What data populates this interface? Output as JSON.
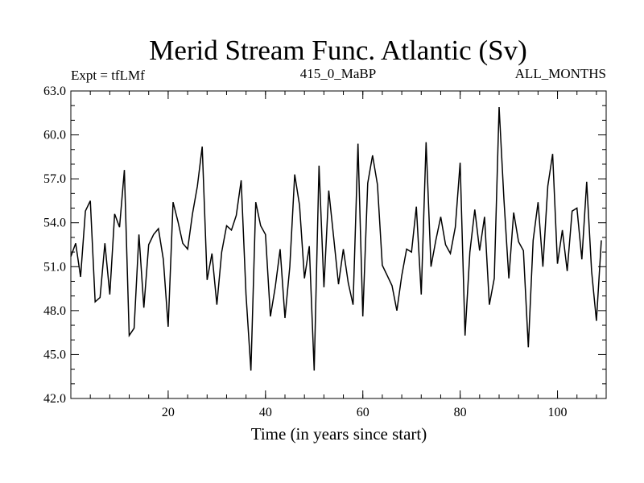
{
  "chart_data": {
    "type": "line",
    "title": "Merid Stream Func. Atlantic (Sv)",
    "subtitle_left": "Expt = tfLMf",
    "subtitle_center": "415_0_MaBP",
    "subtitle_right": "ALL_MONTHS",
    "xlabel": "Time (in years since start)",
    "ylabel": "",
    "xlim": [
      0,
      110
    ],
    "ylim": [
      42.0,
      63.0
    ],
    "x_ticks": [
      20,
      40,
      60,
      80,
      100
    ],
    "y_ticks": [
      "42.0",
      "45.0",
      "48.0",
      "51.0",
      "54.0",
      "57.0",
      "60.0",
      "63.0"
    ],
    "grid": false,
    "line_color": "#000000",
    "series": [
      {
        "x": [
          0,
          1,
          2,
          3,
          4,
          5,
          6,
          7,
          8,
          9,
          10,
          11,
          12,
          13,
          14,
          15,
          16,
          17,
          18,
          19,
          20,
          21,
          22,
          23,
          24,
          25,
          26,
          27,
          28,
          29,
          30,
          31,
          32,
          33,
          34,
          35,
          36,
          37,
          38,
          39,
          40,
          41,
          42,
          43,
          44,
          45,
          46,
          47,
          48,
          49,
          50,
          51,
          52,
          53,
          54,
          55,
          56,
          57,
          58,
          59,
          60,
          61,
          62,
          63,
          64,
          65,
          66,
          67,
          68,
          69,
          70,
          71,
          72,
          73,
          74,
          75,
          76,
          77,
          78,
          79,
          80,
          81,
          82,
          83,
          84,
          85,
          86,
          87,
          88,
          89,
          90,
          91,
          92,
          93,
          94,
          95,
          96,
          97,
          98,
          99,
          100,
          101,
          102,
          103,
          104,
          105,
          106,
          107,
          108,
          109,
          110
        ],
        "values": [
          51.7,
          52.6,
          50.3,
          54.8,
          55.5,
          48.6,
          48.9,
          52.6,
          49.1,
          54.6,
          53.7,
          57.6,
          46.3,
          46.8,
          53.2,
          48.2,
          52.5,
          53.2,
          53.6,
          51.5,
          46.9,
          55.4,
          54.1,
          52.6,
          52.2,
          54.6,
          56.5,
          59.2,
          50.1,
          51.9,
          48.4,
          52.0,
          53.8,
          53.5,
          54.5,
          56.9,
          49.1,
          43.9,
          55.4,
          53.8,
          53.2,
          47.6,
          49.6,
          52.2,
          47.5,
          51.0,
          57.3,
          55.2,
          50.2,
          52.4,
          43.9,
          57.9,
          49.6,
          56.2,
          53.0,
          49.8,
          52.2,
          49.9,
          48.4,
          59.4,
          47.6,
          56.7,
          58.6,
          56.6,
          51.1,
          50.4,
          49.7,
          48.0,
          50.4,
          52.2,
          52.0,
          55.1,
          49.1,
          59.5,
          51.0,
          52.8,
          54.4,
          52.5,
          51.9,
          53.7,
          58.1,
          46.3,
          52.0,
          54.9,
          52.1,
          54.4,
          48.4,
          50.2,
          61.9,
          55.6,
          50.2,
          54.7,
          52.7,
          52.1,
          45.5,
          52.8,
          55.4,
          51.0,
          56.5,
          58.7,
          51.2,
          53.5,
          50.7,
          54.8,
          55.0,
          51.5,
          56.8,
          50.7,
          47.3,
          52.8,
          null
        ]
      }
    ]
  }
}
